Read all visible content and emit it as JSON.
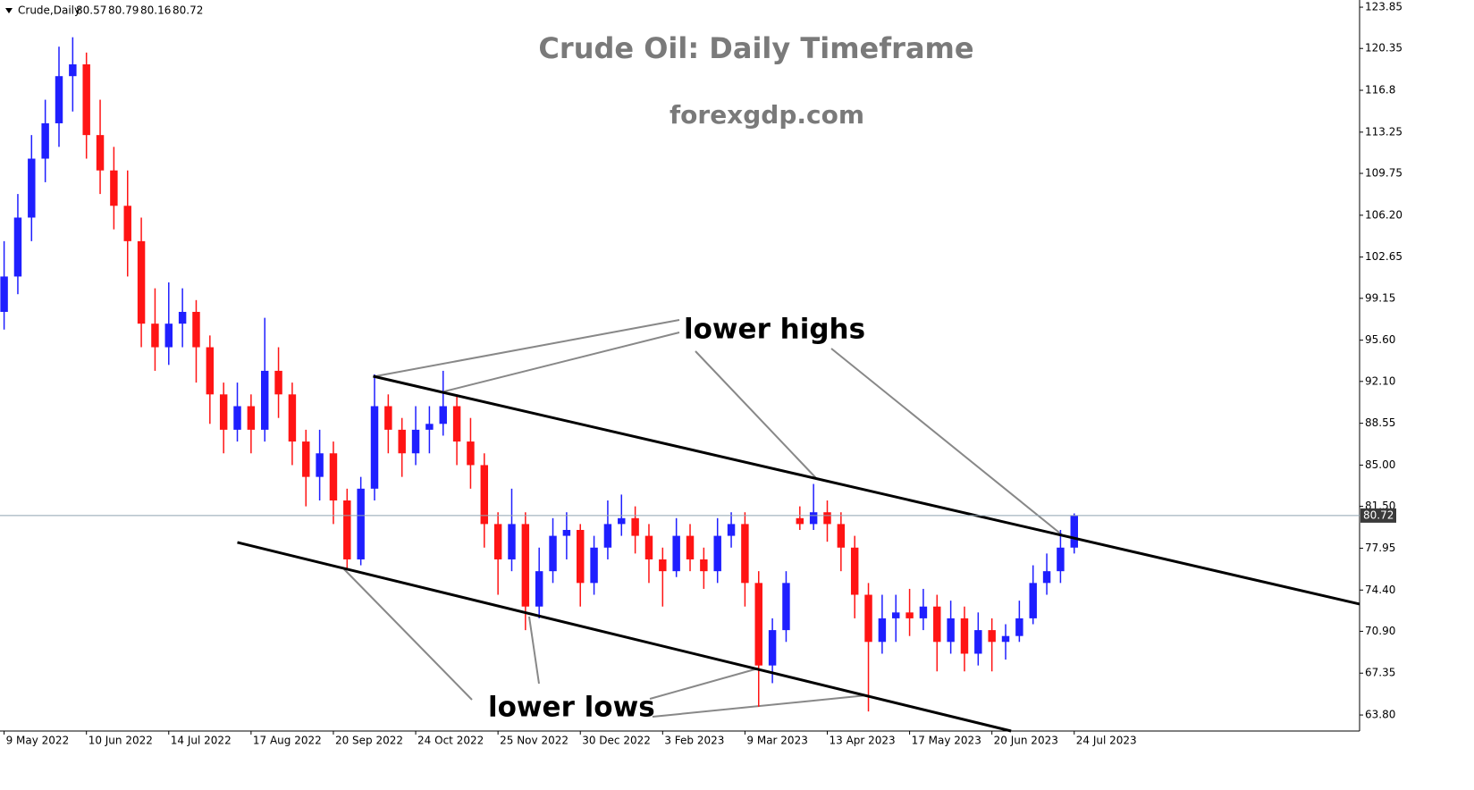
{
  "chart_data": {
    "type": "candlestick",
    "symbol": "Crude,Daily",
    "ohlc": [
      80.57,
      80.79,
      80.16,
      80.72
    ],
    "title": "Crude Oil: Daily Timeframe",
    "subtitle": "forexgdp.com",
    "annotations": [
      "lower highs",
      "lower lows"
    ],
    "up_color": "#1f1fff",
    "down_color": "#ff1414",
    "open": [
      98,
      101,
      106,
      111,
      114,
      118,
      119,
      113,
      110,
      107,
      104,
      97,
      95,
      97,
      98,
      95,
      91,
      88,
      90,
      88,
      93,
      91,
      87,
      84,
      86,
      82,
      77,
      83,
      90,
      88,
      86,
      88,
      88.5,
      90,
      87,
      85,
      80,
      77,
      80,
      73,
      76,
      79,
      79.5,
      75,
      78,
      80,
      80.5,
      79,
      77,
      76,
      79,
      77,
      76,
      79,
      80,
      75,
      68,
      71,
      80.5,
      80,
      81,
      80,
      78,
      74,
      70,
      72,
      72.5,
      72,
      73,
      70,
      72,
      69,
      71,
      70,
      70.5,
      72,
      75,
      76,
      78
    ],
    "high": [
      104,
      108,
      113,
      116,
      120.5,
      121.3,
      120,
      116,
      112,
      110,
      106,
      100,
      100.5,
      100,
      99,
      96,
      92,
      92,
      91,
      97.5,
      95,
      92,
      88,
      88,
      87,
      83,
      84,
      92.7,
      91,
      89,
      90,
      90,
      93,
      91,
      89,
      86,
      81,
      83,
      81,
      78,
      80.5,
      81,
      80,
      79,
      82,
      82.5,
      81.5,
      80,
      78,
      80.5,
      80,
      78,
      80.5,
      81,
      81,
      76,
      72,
      76,
      81.5,
      83.4,
      82,
      81,
      79,
      75,
      74,
      74,
      74.5,
      74.5,
      74,
      73.5,
      73,
      72.5,
      72,
      71.5,
      73.5,
      76.5,
      77.5,
      79.5,
      80.9
    ],
    "low": [
      96.5,
      99.5,
      104,
      109,
      112,
      115,
      111,
      108,
      105,
      101,
      95,
      93,
      93.5,
      95,
      92,
      88.5,
      86,
      87,
      86,
      87,
      89,
      85,
      81.5,
      82,
      80,
      76.2,
      76.5,
      82,
      86,
      84,
      85,
      86,
      87.5,
      85,
      83,
      78,
      74,
      76,
      71,
      72,
      75,
      77,
      73,
      74,
      77,
      79,
      77.5,
      75,
      73,
      75.5,
      76,
      74.5,
      75,
      78,
      73,
      64.5,
      66.5,
      70,
      79.5,
      79.5,
      78.5,
      76,
      72,
      64.1,
      69,
      70,
      70.5,
      71,
      67.5,
      69,
      67.5,
      68,
      67.5,
      68.5,
      70,
      71.5,
      74,
      75,
      77.5
    ],
    "close": [
      101,
      106,
      111,
      114,
      118,
      119,
      113,
      110,
      107,
      104,
      97,
      95,
      97,
      98,
      95,
      91,
      88,
      90,
      88,
      93,
      91,
      87,
      84,
      86,
      82,
      77,
      83,
      90,
      88,
      86,
      88,
      88.5,
      90,
      87,
      85,
      80,
      77,
      80,
      73,
      76,
      79,
      79.5,
      75,
      78,
      80,
      80.5,
      79,
      77,
      76,
      79,
      77,
      76,
      79,
      80,
      75,
      68,
      71,
      75,
      80,
      81,
      80,
      78,
      74,
      70,
      72,
      72.5,
      72,
      73,
      70,
      72,
      69,
      71,
      70,
      70.5,
      72,
      75,
      76,
      78,
      80.72
    ],
    "last_price": 80.72,
    "xlim": [
      -0.3,
      98.8
    ],
    "xticks": [
      {
        "value": 0,
        "label": "9 May 2022"
      },
      {
        "value": 6,
        "label": "10 Jun 2022"
      },
      {
        "value": 12,
        "label": "14 Jul 2022"
      },
      {
        "value": 18,
        "label": "17 Aug 2022"
      },
      {
        "value": 24,
        "label": "20 Sep 2022"
      },
      {
        "value": 30,
        "label": "24 Oct 2022"
      },
      {
        "value": 36,
        "label": "25 Nov 2022"
      },
      {
        "value": 42,
        "label": "30 Dec 2022"
      },
      {
        "value": 48,
        "label": "3 Feb 2023"
      },
      {
        "value": 54,
        "label": "9 Mar 2023"
      },
      {
        "value": 60,
        "label": "13 Apr 2023"
      },
      {
        "value": 66,
        "label": "17 May 2023"
      },
      {
        "value": 72,
        "label": "20 Jun 2023"
      },
      {
        "value": 78,
        "label": "24 Jul 2023"
      }
    ],
    "ylim": [
      62.44,
      124.46
    ],
    "yticks": [
      123.85,
      120.35,
      116.8,
      113.25,
      109.75,
      {
        "value": 106.2,
        "label": "106.20"
      },
      102.65,
      99.15,
      {
        "value": 95.6,
        "label": "95.60"
      },
      {
        "value": 92.1,
        "label": "92.10"
      },
      88.55,
      {
        "value": 85,
        "label": "85.00"
      },
      {
        "value": 81.5,
        "label": "81.50"
      },
      77.95,
      {
        "value": 74.4,
        "label": "74.40"
      },
      {
        "value": 70.9,
        "label": "70.90"
      },
      67.35,
      {
        "value": 63.8,
        "label": "63.80"
      }
    ],
    "trendlines": [
      {
        "x": [
          26.9,
          98.8
        ],
        "y": [
          92.54,
          73.21
        ]
      },
      {
        "x": [
          17.0,
          73.4
        ],
        "y": [
          78.44,
          62.44
        ]
      }
    ]
  }
}
